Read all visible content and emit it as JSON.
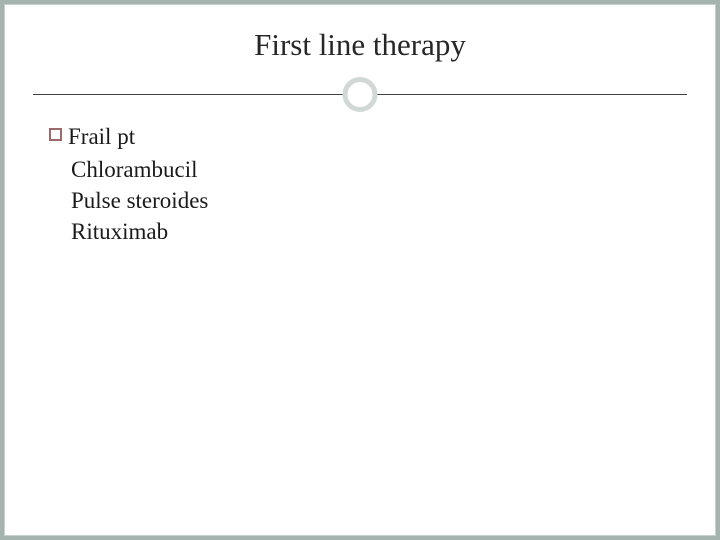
{
  "slide": {
    "title": "First line therapy",
    "title_fontsize": 31,
    "title_color": "#262626",
    "bullet": {
      "label": "Frail pt",
      "border_color": "#9c6a6a",
      "size": 13
    },
    "lines": [
      "Chlorambucil",
      "Pulse steroides",
      "Rituximab"
    ],
    "body_fontsize": 23,
    "body_color": "#1a1a1a",
    "divider": {
      "line_color": "#3f3f3f",
      "circle_border_color": "#d2d8d6",
      "circle_size": 35,
      "circle_border_width": 5
    },
    "background_color": "#a6b4b0",
    "slide_background": "#ffffff"
  }
}
